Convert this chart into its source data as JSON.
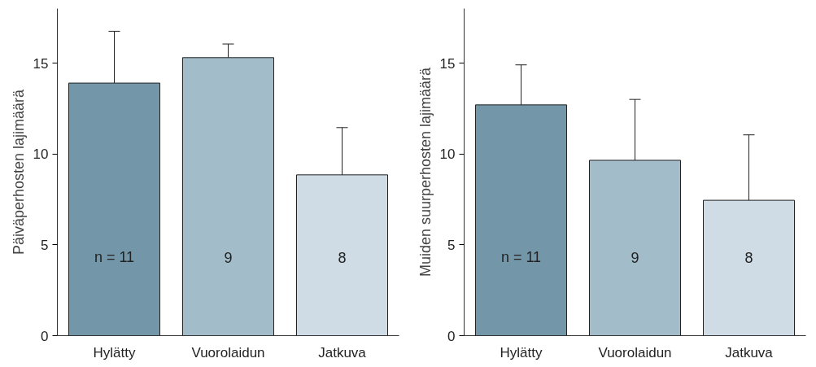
{
  "chart_data": [
    {
      "type": "bar",
      "ylabel": "Päiväperhosten lajimäärä",
      "categories": [
        "Hylätty",
        "Vuorolaidun",
        "Jatkuva"
      ],
      "values": [
        13.9,
        15.3,
        8.85
      ],
      "colors": [
        "#7397a8",
        "#a2bcc9",
        "#cfdce5"
      ],
      "errors": [
        [
          13.9,
          16.75
        ],
        [
          15.3,
          16.05
        ],
        [
          8.85,
          11.45
        ]
      ],
      "ylim": [
        0,
        18
      ],
      "yticks": [
        0,
        5,
        10,
        15
      ],
      "grid": false,
      "annotations": [
        "n = 11",
        "9",
        "8"
      ]
    },
    {
      "type": "bar",
      "ylabel": "Muiden suurperhosten lajimäärä",
      "categories": [
        "Hylätty",
        "Vuorolaidun",
        "Jatkuva"
      ],
      "values": [
        12.7,
        9.65,
        7.45
      ],
      "colors": [
        "#7397a8",
        "#a2bcc9",
        "#cfdce5"
      ],
      "errors": [
        [
          12.7,
          14.9
        ],
        [
          9.65,
          13.0
        ],
        [
          7.45,
          11.05
        ]
      ],
      "ylim": [
        0,
        18
      ],
      "yticks": [
        0,
        5,
        10,
        15
      ],
      "grid": false,
      "annotations": [
        "n = 11",
        "9",
        "8"
      ]
    }
  ]
}
